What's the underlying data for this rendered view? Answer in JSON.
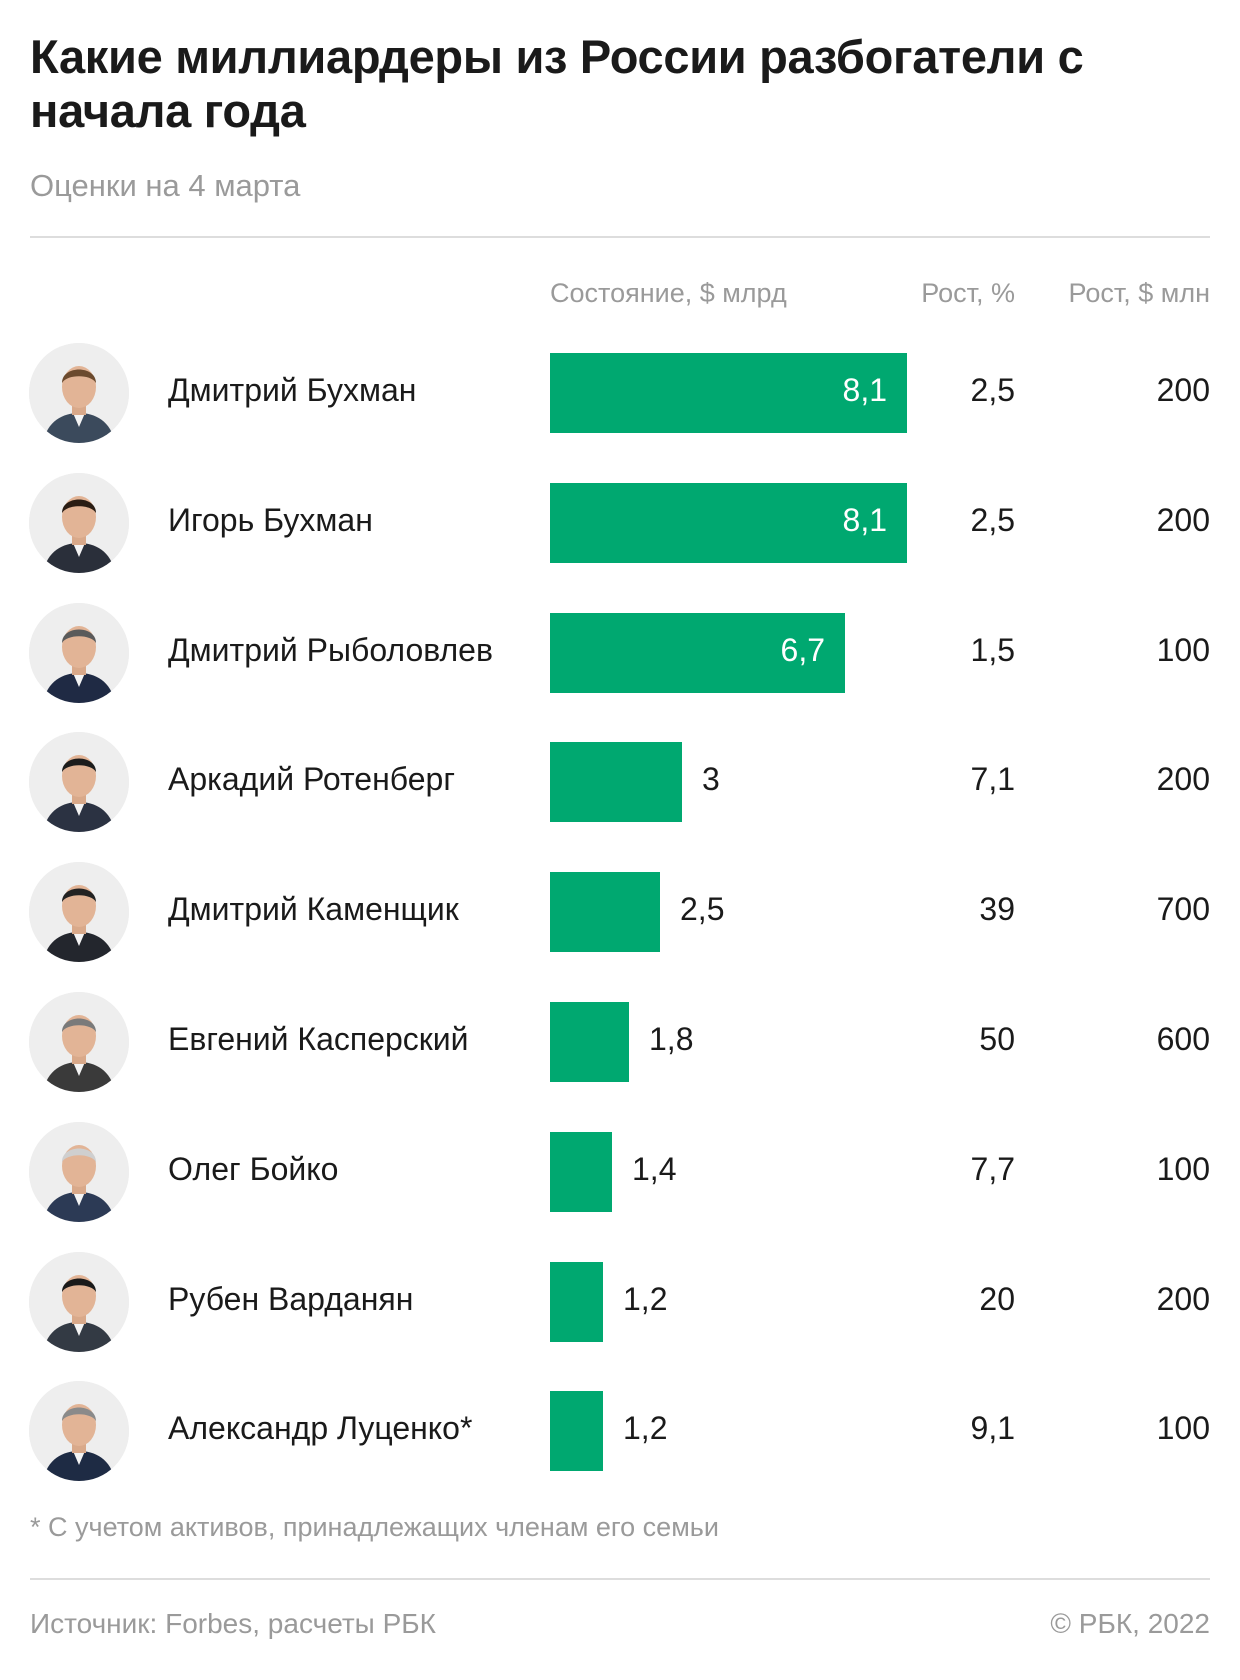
{
  "header": {
    "title": "Какие миллиардеры из России разбогатели с начала года",
    "subtitle": "Оценки на 4 марта"
  },
  "columns": {
    "value": "Состояние, $ млрд",
    "growth_pct": "Рост, %",
    "growth_mln": "Рост, $ млн"
  },
  "chart_data": {
    "type": "bar",
    "orientation": "horizontal",
    "title": "Какие миллиардеры из России разбогатели с начала года",
    "subtitle": "Оценки на 4 марта",
    "value_label": "Состояние, $ млрд",
    "categories": [
      "Дмитрий Бухман",
      "Игорь Бухман",
      "Дмитрий Рыболовлев",
      "Аркадий Ротенберг",
      "Дмитрий Каменщик",
      "Евгений Касперский",
      "Олег Бойко",
      "Рубен Варданян",
      "Александр Луценко*"
    ],
    "values": [
      8.1,
      8.1,
      6.7,
      3,
      2.5,
      1.8,
      1.4,
      1.2,
      1.2
    ],
    "value_labels": [
      "8,1",
      "8,1",
      "6,7",
      "3",
      "2,5",
      "1,8",
      "1,4",
      "1,2",
      "1,2"
    ],
    "growth_pct_labels": [
      "2,5",
      "2,5",
      "1,5",
      "7,1",
      "39",
      "50",
      "7,7",
      "20",
      "9,1"
    ],
    "growth_mln_labels": [
      "200",
      "200",
      "100",
      "200",
      "700",
      "600",
      "100",
      "200",
      "100"
    ],
    "growth_pct": [
      2.5,
      2.5,
      1.5,
      7.1,
      39,
      50,
      7.7,
      20,
      9.1
    ],
    "growth_mln": [
      200,
      200,
      100,
      200,
      700,
      600,
      100,
      200,
      100
    ],
    "bar_color": "#00a870",
    "grid": false
  },
  "footer": {
    "footnote": "* С учетом активов, принадлежащих членам его семьи",
    "source": "Источник: Forbes, расчеты РБК",
    "copyright": "© РБК, 2022"
  },
  "colors": {
    "bar": "#00a870",
    "muted_text": "#9a9a9a",
    "text": "#1a1a1a"
  },
  "icons": {
    "row_image": "portrait-photo"
  }
}
